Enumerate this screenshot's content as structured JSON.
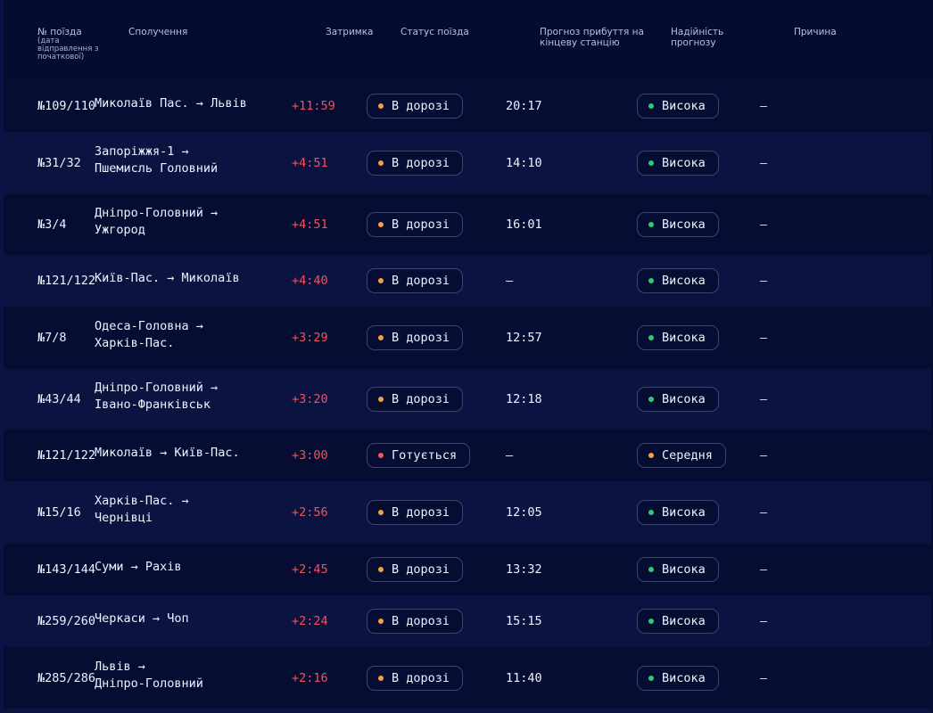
{
  "header": {
    "col_train": "№ поїзда",
    "col_train_sub": "(дата відправлення з початкової)",
    "col_route": "Сполучення",
    "col_delay": "Затримка",
    "col_status": "Статус поїзда",
    "col_forecast": "Прогноз прибуття на кінцеву станцію",
    "col_reliability": "Надійність прогнозу",
    "col_reason": "Причина"
  },
  "colors": {
    "status_on_way": "#f2a04a",
    "status_preparing": "#ff4d56",
    "reliability_high": "#2ecc71",
    "reliability_medium": "#f2a04a",
    "delay": "#ff4d56"
  },
  "rows": [
    {
      "train": "№109/110",
      "route_from": "Миколаїв Пас. →",
      "route_to": "Львів",
      "route_inline": true,
      "delay": "+11:59",
      "status": "В дорозі",
      "status_color": "#f2a04a",
      "forecast": "20:17",
      "reliability": "Висока",
      "reliability_color": "#2ecc71",
      "reason": "—"
    },
    {
      "train": "№31/32",
      "route_from": "Запоріжжя-1 →",
      "route_to": "Пшемисль Головний",
      "route_inline": false,
      "delay": "+4:51",
      "status": "В дорозі",
      "status_color": "#f2a04a",
      "forecast": "14:10",
      "reliability": "Висока",
      "reliability_color": "#2ecc71",
      "reason": "—"
    },
    {
      "train": "№3/4",
      "route_from": "Дніпро-Головний →",
      "route_to": "Ужгород",
      "route_inline": false,
      "delay": "+4:51",
      "status": "В дорозі",
      "status_color": "#f2a04a",
      "forecast": "16:01",
      "reliability": "Висока",
      "reliability_color": "#2ecc71",
      "reason": "—"
    },
    {
      "train": "№121/122",
      "route_from": "Київ-Пас. →",
      "route_to": "Миколаїв",
      "route_inline": true,
      "delay": "+4:40",
      "status": "В дорозі",
      "status_color": "#f2a04a",
      "forecast": "—",
      "reliability": "Висока",
      "reliability_color": "#2ecc71",
      "reason": "—"
    },
    {
      "train": "№7/8",
      "route_from": "Одеса-Головна →",
      "route_to": "Харків-Пас.",
      "route_inline": false,
      "delay": "+3:29",
      "status": "В дорозі",
      "status_color": "#f2a04a",
      "forecast": "12:57",
      "reliability": "Висока",
      "reliability_color": "#2ecc71",
      "reason": "—"
    },
    {
      "train": "№43/44",
      "route_from": "Дніпро-Головний →",
      "route_to": "Івано-Франківськ",
      "route_inline": false,
      "delay": "+3:20",
      "status": "В дорозі",
      "status_color": "#f2a04a",
      "forecast": "12:18",
      "reliability": "Висока",
      "reliability_color": "#2ecc71",
      "reason": "—"
    },
    {
      "train": "№121/122",
      "route_from": "Миколаїв →",
      "route_to": "Київ-Пас.",
      "route_inline": true,
      "delay": "+3:00",
      "status": "Готується",
      "status_color": "#ff4d56",
      "forecast": "—",
      "reliability": "Середня",
      "reliability_color": "#f2a04a",
      "reason": "—"
    },
    {
      "train": "№15/16",
      "route_from": "Харків-Пас. →",
      "route_to": "Чернівці",
      "route_inline": false,
      "delay": "+2:56",
      "status": "В дорозі",
      "status_color": "#f2a04a",
      "forecast": "12:05",
      "reliability": "Висока",
      "reliability_color": "#2ecc71",
      "reason": "—"
    },
    {
      "train": "№143/144",
      "route_from": "Суми →",
      "route_to": "Рахів",
      "route_inline": true,
      "delay": "+2:45",
      "status": "В дорозі",
      "status_color": "#f2a04a",
      "forecast": "13:32",
      "reliability": "Висока",
      "reliability_color": "#2ecc71",
      "reason": "—"
    },
    {
      "train": "№259/260",
      "route_from": "Черкаси →",
      "route_to": "Чоп",
      "route_inline": true,
      "delay": "+2:24",
      "status": "В дорозі",
      "status_color": "#f2a04a",
      "forecast": "15:15",
      "reliability": "Висока",
      "reliability_color": "#2ecc71",
      "reason": "—"
    },
    {
      "train": "№285/286",
      "route_from": "Львів →",
      "route_to": "Дніпро-Головний",
      "route_inline": false,
      "delay": "+2:16",
      "status": "В дорозі",
      "status_color": "#f2a04a",
      "forecast": "11:40",
      "reliability": "Висока",
      "reliability_color": "#2ecc71",
      "reason": "—"
    }
  ]
}
